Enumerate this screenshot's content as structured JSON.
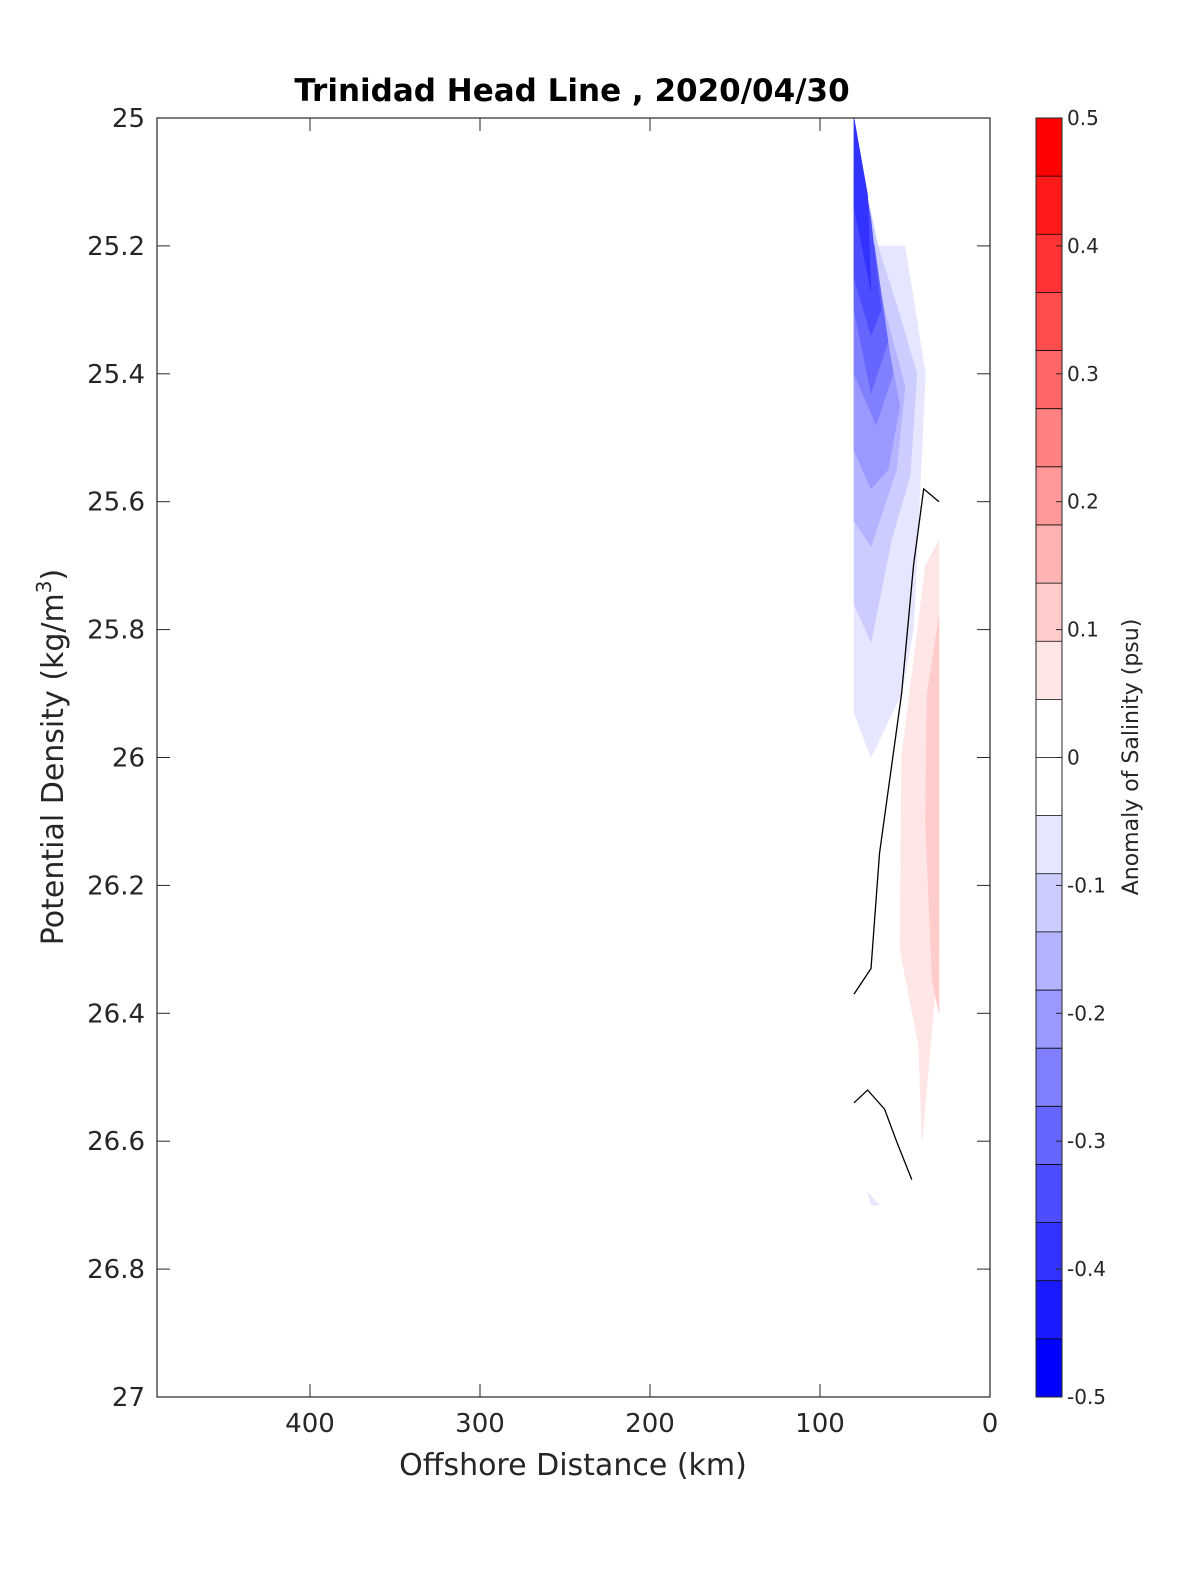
{
  "chart_data": {
    "type": "contour",
    "title": "Trinidad Head Line , 2020/04/30",
    "xlabel": "Offshore Distance (km)",
    "ylabel_main": "Potential Density (kg/m",
    "ylabel_sup": "3",
    "ylabel_close": ")",
    "xlim": [
      490,
      0
    ],
    "ylim": [
      25,
      27
    ],
    "x_reversed": true,
    "y_reversed": true,
    "xticks": [
      400,
      300,
      200,
      100,
      0
    ],
    "yticks": [
      25,
      25.2,
      25.4,
      25.6,
      25.8,
      26,
      26.2,
      26.4,
      26.6,
      26.8,
      27
    ],
    "xtick_labels": [
      "400",
      "300",
      "200",
      "100",
      "0"
    ],
    "ytick_labels": [
      "25",
      "25.2",
      "25.4",
      "25.6",
      "25.8",
      "26",
      "26.2",
      "26.4",
      "26.6",
      "26.8",
      "27"
    ],
    "grid": false,
    "colorbar": {
      "label": "Anomaly of Salinity (psu)",
      "range": [
        -0.5,
        0.5
      ],
      "step": 0.05,
      "ticks": [
        0.5,
        0.4,
        0.3,
        0.2,
        0.1,
        0,
        -0.1,
        -0.2,
        -0.3,
        -0.4,
        -0.5
      ],
      "tick_labels": [
        "0.5",
        "0.4",
        "0.3",
        "0.2",
        "0.1",
        "0",
        "-0.1",
        "-0.2",
        "-0.3",
        "-0.4",
        "-0.5"
      ],
      "colors_top_to_bottom": [
        "#ff0000",
        "#ff1a1a",
        "#ff3333",
        "#ff4d4d",
        "#ff6666",
        "#ff8080",
        "#ff9999",
        "#ffb3b3",
        "#ffcccc",
        "#ffe6e6",
        "#ffffff",
        "#ffffff",
        "#e6e6ff",
        "#ccccff",
        "#b3b3ff",
        "#9999ff",
        "#8080ff",
        "#6666ff",
        "#4d4dff",
        "#3333ff",
        "#1a1aff",
        "#0000ff"
      ]
    },
    "filled_regions": [
      {
        "anomaly_level": -0.05,
        "color": "#e6e6ff",
        "points": [
          [
            80,
            25.0
          ],
          [
            69,
            25.2
          ],
          [
            50,
            25.2
          ],
          [
            38,
            25.4
          ],
          [
            45,
            25.8
          ],
          [
            52,
            25.9
          ],
          [
            70,
            26.0
          ],
          [
            80,
            25.93
          ]
        ]
      },
      {
        "anomaly_level": -0.1,
        "color": "#ccccff",
        "points": [
          [
            80,
            25.02
          ],
          [
            66,
            25.2
          ],
          [
            54,
            25.3
          ],
          [
            43,
            25.4
          ],
          [
            47,
            25.56
          ],
          [
            58,
            25.66
          ],
          [
            70,
            25.82
          ],
          [
            80,
            25.76
          ]
        ]
      },
      {
        "anomaly_level": -0.15,
        "color": "#b3b3ff",
        "points": [
          [
            80,
            25.04
          ],
          [
            62,
            25.3
          ],
          [
            50,
            25.42
          ],
          [
            55,
            25.55
          ],
          [
            70,
            25.67
          ],
          [
            80,
            25.63
          ]
        ]
      },
      {
        "anomaly_level": -0.2,
        "color": "#9999ff",
        "points": [
          [
            80,
            25.06
          ],
          [
            64,
            25.3
          ],
          [
            53,
            25.45
          ],
          [
            60,
            25.55
          ],
          [
            70,
            25.58
          ],
          [
            80,
            25.52
          ]
        ]
      },
      {
        "anomaly_level": -0.25,
        "color": "#8080ff",
        "points": [
          [
            80,
            25.08
          ],
          [
            66,
            25.25
          ],
          [
            57,
            25.4
          ],
          [
            67,
            25.48
          ],
          [
            80,
            25.4
          ]
        ]
      },
      {
        "anomaly_level": -0.3,
        "color": "#6666ff",
        "points": [
          [
            80,
            25.1
          ],
          [
            68,
            25.2
          ],
          [
            60,
            25.35
          ],
          [
            70,
            25.43
          ],
          [
            80,
            25.3
          ]
        ]
      },
      {
        "anomaly_level": -0.35,
        "color": "#4d4dff",
        "points": [
          [
            80,
            25.0
          ],
          [
            70,
            25.16
          ],
          [
            64,
            25.3
          ],
          [
            70,
            25.34
          ],
          [
            80,
            25.25
          ]
        ]
      },
      {
        "anomaly_level": -0.4,
        "color": "#3333ff",
        "points": [
          [
            80,
            25.0
          ],
          [
            72,
            25.12
          ],
          [
            70,
            25.27
          ],
          [
            80,
            25.14
          ]
        ]
      },
      {
        "anomaly_level": 0.05,
        "color": "#ffe6e6",
        "points": [
          [
            30,
            25.66
          ],
          [
            30,
            26.3
          ],
          [
            40,
            26.6
          ],
          [
            42,
            26.45
          ],
          [
            53,
            26.3
          ],
          [
            52,
            26.0
          ],
          [
            45,
            25.85
          ],
          [
            38,
            25.7
          ]
        ]
      },
      {
        "anomaly_level": 0.1,
        "color": "#ffcccc",
        "points": [
          [
            30,
            25.78
          ],
          [
            30,
            26.4
          ],
          [
            34,
            26.35
          ],
          [
            38,
            26.1
          ],
          [
            37,
            25.9
          ]
        ]
      },
      {
        "anomaly_level": -0.05,
        "color": "#e6e6ff",
        "points": [
          [
            72,
            26.68
          ],
          [
            65,
            26.7
          ],
          [
            70,
            26.7
          ]
        ]
      }
    ],
    "zero_contours": [
      {
        "level": 0,
        "points": [
          [
            80,
            26.37
          ],
          [
            70,
            26.33
          ],
          [
            65,
            26.15
          ],
          [
            52,
            25.9
          ],
          [
            45,
            25.7
          ],
          [
            39,
            25.58
          ],
          [
            30,
            25.6
          ]
        ]
      },
      {
        "level": 0,
        "points": [
          [
            80,
            26.54
          ],
          [
            72,
            26.52
          ],
          [
            62,
            26.55
          ],
          [
            55,
            26.6
          ],
          [
            46,
            26.66
          ]
        ]
      }
    ]
  }
}
